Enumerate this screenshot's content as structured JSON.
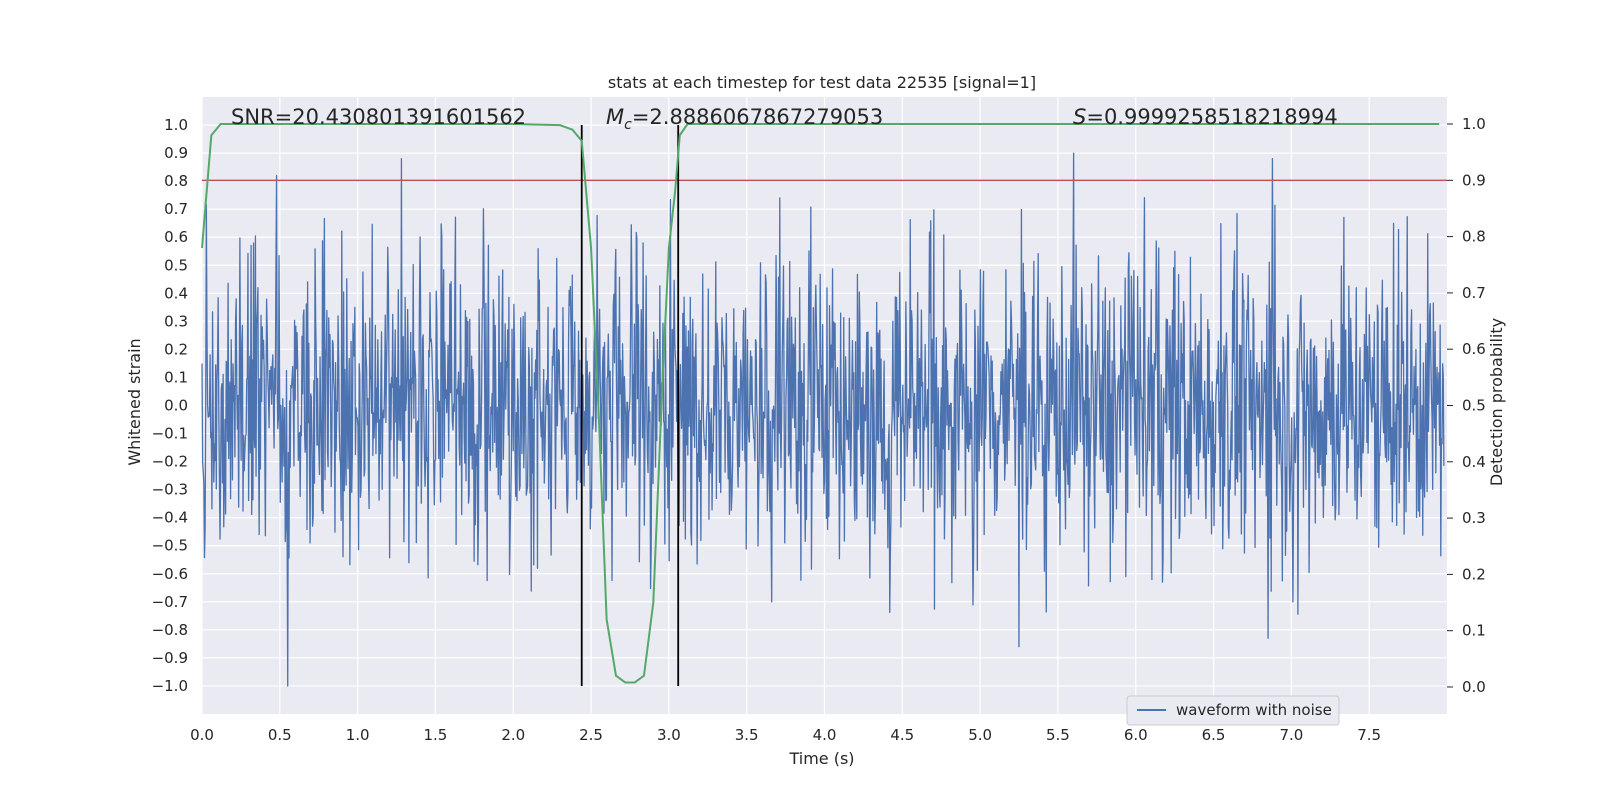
{
  "chart_data": {
    "type": "line",
    "title": "stats at each timestep for test data 22535 [signal=1]",
    "xlabel": "Time (s)",
    "ylabel": "Whitened strain",
    "y2label": "Detection probability",
    "xlim": [
      0.0,
      8.0
    ],
    "ylim": [
      -1.1,
      1.1
    ],
    "y2lim": [
      -0.048,
      1.048
    ],
    "grid": true,
    "legend_position": "lower-right",
    "x_ticks": [
      "0.0",
      "0.5",
      "1.0",
      "1.5",
      "2.0",
      "2.5",
      "3.0",
      "3.5",
      "4.0",
      "4.5",
      "5.0",
      "5.5",
      "6.0",
      "6.5",
      "7.0",
      "7.5"
    ],
    "y_ticks": [
      "1.0",
      "0.9",
      "0.8",
      "0.7",
      "0.6",
      "0.5",
      "0.4",
      "0.3",
      "0.2",
      "0.1",
      "0.0",
      "−0.1",
      "−0.2",
      "−0.3",
      "−0.4",
      "−0.5",
      "−0.6",
      "−0.7",
      "−0.8",
      "−0.9",
      "−1.0"
    ],
    "y2_ticks": [
      "1.0",
      "0.9",
      "0.8",
      "0.7",
      "0.6",
      "0.5",
      "0.4",
      "0.3",
      "0.2",
      "0.1",
      "0.0"
    ],
    "annotations": {
      "snr": "SNR=20.430801391601562",
      "mc_symbol": "M",
      "mc_sub": "c",
      "mc_value": "=2.8886067867279053",
      "s_symbol": "S",
      "s_value": "=0.9999258518218994"
    },
    "threshold": {
      "axis": "right",
      "value": 0.9,
      "color": "#c44e52"
    },
    "vlines": [
      2.44,
      3.06
    ],
    "series": [
      {
        "name": "waveform with noise",
        "axis": "left",
        "color": "#4c72b0",
        "envelope_typical": 0.45,
        "notable_peaks": [
          {
            "x": 0.48,
            "y": 0.82
          },
          {
            "x": 1.28,
            "y": 0.88
          },
          {
            "x": 5.25,
            "y": 0.94
          },
          {
            "x": 5.6,
            "y": 0.9
          },
          {
            "x": 6.88,
            "y": 0.88
          },
          {
            "x": 0.55,
            "y": -1.0
          },
          {
            "x": 5.25,
            "y": -0.86
          },
          {
            "x": 6.85,
            "y": -0.83
          }
        ]
      },
      {
        "name": "",
        "axis": "right",
        "color": "#55a868",
        "x": [
          0.0,
          0.06,
          0.12,
          0.5,
          1.0,
          1.5,
          2.0,
          2.3,
          2.38,
          2.44,
          2.5,
          2.55,
          2.6,
          2.66,
          2.72,
          2.78,
          2.84,
          2.9,
          2.96,
          3.0,
          3.04,
          3.07,
          3.12,
          3.2,
          3.5,
          4.0,
          5.0,
          6.0,
          7.0,
          7.95
        ],
        "y": [
          0.78,
          0.98,
          1.0,
          1.0,
          1.0,
          1.0,
          1.0,
          0.998,
          0.99,
          0.97,
          0.78,
          0.48,
          0.12,
          0.02,
          0.008,
          0.008,
          0.02,
          0.15,
          0.55,
          0.78,
          0.88,
          0.98,
          1.0,
          1.0,
          1.0,
          1.0,
          1.0,
          1.0,
          1.0,
          1.0
        ]
      }
    ]
  }
}
